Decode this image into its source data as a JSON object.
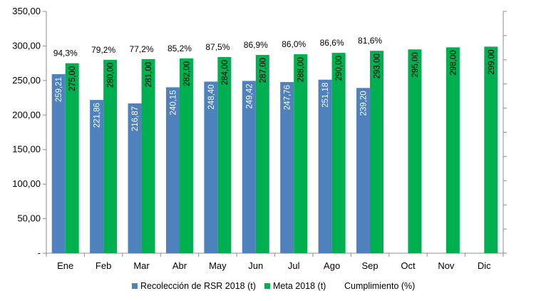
{
  "chart_data": {
    "type": "bar",
    "categories": [
      "Ene",
      "Feb",
      "Mar",
      "Abr",
      "May",
      "Jun",
      "Jul",
      "Ago",
      "Sep",
      "Oct",
      "Nov",
      "Dic"
    ],
    "series": [
      {
        "name": "Recolección de RSR 2018 (t)",
        "color": "#4f81bd",
        "values": [
          259.21,
          221.86,
          216.87,
          240.15,
          248.4,
          249.42,
          247.76,
          251.18,
          239.2,
          null,
          null,
          null
        ],
        "labels": [
          "259,21",
          "221,86",
          "216,87",
          "240,15",
          "248,40",
          "249,42",
          "247,76",
          "251,18",
          "239,20",
          "",
          "",
          ""
        ]
      },
      {
        "name": "Meta 2018 (t)",
        "color": "#00b050",
        "values": [
          275,
          280,
          281,
          282,
          284,
          287,
          288,
          290,
          293,
          295,
          298,
          299
        ],
        "labels": [
          "275,00",
          "280,00",
          "281,00",
          "282,00",
          "284,00",
          "287,00",
          "288,00",
          "290,00",
          "293,00",
          "295,00",
          "298,00",
          "299,00"
        ]
      },
      {
        "name": "Cumplimiento (%)",
        "values": [
          94.3,
          79.2,
          77.2,
          85.2,
          87.5,
          86.9,
          86.0,
          86.6,
          81.6,
          null,
          null,
          null
        ],
        "labels": [
          "94,3%",
          "79,2%",
          "77,2%",
          "85,2%",
          "87,5%",
          "86,9%",
          "86,0%",
          "86,6%",
          "81,6%",
          "",
          "",
          ""
        ]
      }
    ],
    "ylim": [
      0,
      350
    ],
    "yticks": [
      0,
      50,
      100,
      150,
      200,
      250,
      300,
      350
    ],
    "ytick_labels": [
      "-",
      "50,00",
      "100,00",
      "150,00",
      "200,00",
      "250,00",
      "300,00",
      "350,00"
    ],
    "secondary_axis": "unlabeled ticks",
    "grid": false,
    "legend": "bottom"
  }
}
